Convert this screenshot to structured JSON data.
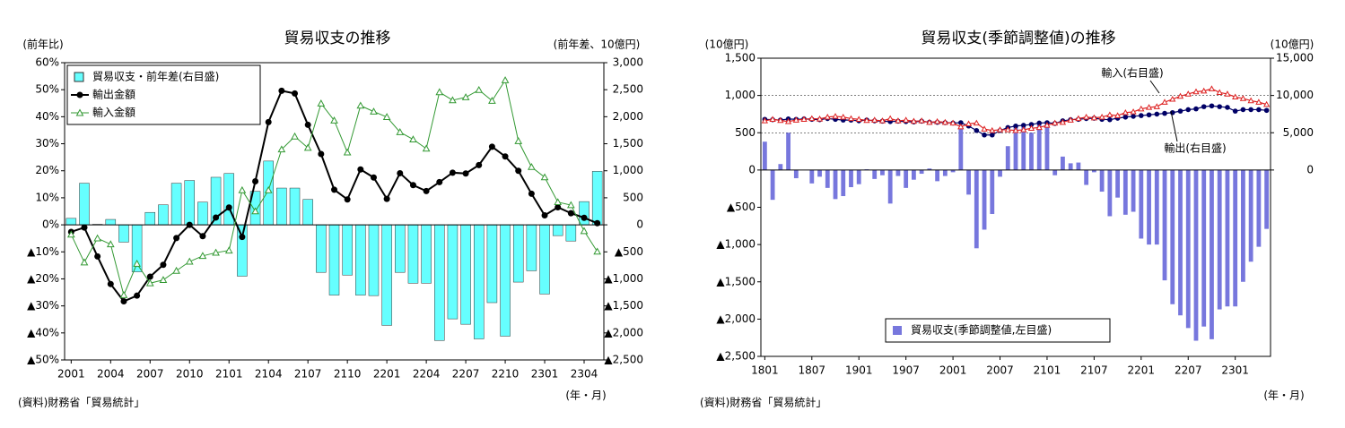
{
  "chart_data": [
    {
      "type": "combo",
      "title": "貿易収支の推移",
      "y_label": "(前年比)",
      "y2_label": "(前年差、10億円)",
      "x_label": "(年・月)",
      "source": "(資料)財務省「貿易統計」",
      "legend": "upper left",
      "categories": [
        "2001",
        null,
        null,
        "2004",
        null,
        null,
        "2007",
        null,
        null,
        "2010",
        null,
        null,
        "2101",
        null,
        null,
        "2104",
        null,
        null,
        "2107",
        null,
        null,
        "2110",
        null,
        null,
        "2201",
        null,
        null,
        "2204",
        null,
        null,
        "2207",
        null,
        null,
        "2210",
        null,
        null,
        "2301",
        null,
        null,
        "2304",
        null
      ],
      "ylim": [
        -50,
        60
      ],
      "yticks": [
        {
          "value": -50,
          "label": "▲50%"
        },
        {
          "value": -40,
          "label": "▲40%"
        },
        {
          "value": -30,
          "label": "▲30%"
        },
        {
          "value": -20,
          "label": "▲20%"
        },
        {
          "value": -10,
          "label": "▲10%"
        },
        {
          "value": 0,
          "label": "0%"
        },
        {
          "value": 10,
          "label": "10%"
        },
        {
          "value": 20,
          "label": "20%"
        },
        {
          "value": 30,
          "label": "30%"
        },
        {
          "value": 40,
          "label": "40%"
        },
        {
          "value": 50,
          "label": "50%"
        },
        {
          "value": 60,
          "label": "60%"
        }
      ],
      "y2lim": [
        -2500,
        3000
      ],
      "y2ticks": [
        {
          "value": -2500,
          "label": "▲2,500"
        },
        {
          "value": -2000,
          "label": "▲2,000"
        },
        {
          "value": -1500,
          "label": "▲1,500"
        },
        {
          "value": -1000,
          "label": "▲1,000"
        },
        {
          "value": -500,
          "label": "▲500"
        },
        0,
        500,
        {
          "value": 1000,
          "label": "1,000"
        },
        {
          "value": 1500,
          "label": "1,500"
        },
        {
          "value": 2000,
          "label": "2,000"
        },
        {
          "value": 2500,
          "label": "2,500"
        },
        {
          "value": 3000,
          "label": "3,000"
        }
      ],
      "grid": false,
      "series": [
        {
          "name": "貿易収支・前年差(右目盛)",
          "type": "bar",
          "axis": "y2",
          "color": "#66ffff",
          "values": [
            120,
            770,
            10,
            100,
            -320,
            -870,
            230,
            370,
            770,
            820,
            420,
            880,
            950,
            -950,
            620,
            1180,
            680,
            680,
            470,
            -880,
            -1300,
            -930,
            -1300,
            -1310,
            -1860,
            -880,
            -1080,
            -1080,
            -2140,
            -1740,
            -1840,
            -2110,
            -1440,
            -2060,
            -1060,
            -850,
            -1280,
            -200,
            -300,
            430,
            990
          ]
        },
        {
          "name": "輸出金額",
          "type": "line",
          "marker": "circle",
          "color": "#000000",
          "values": [
            -2.6,
            -1,
            -11.7,
            -21.9,
            -28.3,
            -26.2,
            -19.2,
            -14.8,
            -4.9,
            0,
            -4.2,
            2.7,
            6.4,
            -4.5,
            16.1,
            38,
            49.6,
            48.6,
            37,
            26.2,
            13,
            9.4,
            20.5,
            17.5,
            9.6,
            19.1,
            14.7,
            12.5,
            15.8,
            19.3,
            19,
            22.1,
            28.9,
            25.3,
            20,
            11.5,
            3.5,
            6.5,
            4.3,
            2.6,
            0.6
          ]
        },
        {
          "name": "輸入金額",
          "type": "line",
          "marker": "triangle",
          "color": "#339933",
          "values": [
            -3.6,
            -13.9,
            -5,
            -7.2,
            -26,
            -14.4,
            -21.6,
            -20.4,
            -17,
            -13.6,
            -11.5,
            -10.3,
            -9.5,
            12.8,
            5,
            12.8,
            27.9,
            32.7,
            28.5,
            44.9,
            38.6,
            26.8,
            44.1,
            41.9,
            39.9,
            34.3,
            31.6,
            28.2,
            49.1,
            46.1,
            47.2,
            49.9,
            45.9,
            53.5,
            31,
            21.4,
            17.6,
            8.4,
            7.3,
            -2.3,
            -9.9
          ]
        }
      ]
    },
    {
      "type": "combo",
      "title": "貿易収支(季節調整値)の推移",
      "y_label": "(10億円)",
      "y2_label": "(10億円)",
      "x_label": "(年・月)",
      "source": "(資料)財務省「貿易統計」",
      "legend": "lower center",
      "annotations": [
        "輸入(右目盛)",
        "輸出(右目盛)"
      ],
      "categories": [
        "1801",
        null,
        null,
        null,
        null,
        null,
        "1807",
        null,
        null,
        null,
        null,
        null,
        "1901",
        null,
        null,
        null,
        null,
        null,
        "1907",
        null,
        null,
        null,
        null,
        null,
        "2001",
        null,
        null,
        null,
        null,
        null,
        "2007",
        null,
        null,
        null,
        null,
        null,
        "2101",
        null,
        null,
        null,
        null,
        null,
        "2107",
        null,
        null,
        null,
        null,
        null,
        "2201",
        null,
        null,
        null,
        null,
        null,
        "2207",
        null,
        null,
        null,
        null,
        null,
        "2301",
        null,
        null,
        null,
        null
      ],
      "ylim": [
        -2500,
        1500
      ],
      "yticks": [
        {
          "value": -2500,
          "label": "▲2,500"
        },
        {
          "value": -2000,
          "label": "▲2,000"
        },
        {
          "value": -1500,
          "label": "▲1,500"
        },
        {
          "value": -1000,
          "label": "▲1,000"
        },
        {
          "value": -500,
          "label": "▲500"
        },
        0,
        500,
        {
          "value": 1000,
          "label": "1,000"
        },
        {
          "value": 1500,
          "label": "1,500"
        }
      ],
      "y2lim": [
        -25000,
        15000
      ],
      "y2ticks": [
        0,
        {
          "value": 5000,
          "label": "5,000"
        },
        {
          "value": 10000,
          "label": "10,000"
        },
        {
          "value": 15000,
          "label": "15,000"
        }
      ],
      "grid": true,
      "series": [
        {
          "name": "貿易収支(季節調整値,左目盛)",
          "type": "bar",
          "axis": "y",
          "color": "#7777dd",
          "values": [
            380,
            -400,
            80,
            500,
            -110,
            0,
            -180,
            -90,
            -240,
            -390,
            -350,
            -230,
            -190,
            10,
            -120,
            -70,
            -450,
            -80,
            -240,
            -130,
            -50,
            20,
            -150,
            -80,
            -30,
            580,
            -330,
            -1050,
            -800,
            -590,
            -90,
            320,
            580,
            580,
            500,
            620,
            650,
            -70,
            180,
            90,
            100,
            -200,
            -30,
            -290,
            -620,
            -370,
            -600,
            -560,
            -920,
            -1000,
            -1000,
            -1480,
            -1800,
            -1950,
            -2120,
            -2290,
            -2100,
            -2270,
            -1870,
            -1830,
            -1830,
            -1500,
            -1230,
            -1030,
            -790
          ]
        },
        {
          "type": "line",
          "axis": "y2",
          "marker": "circle",
          "color": "#000066",
          "values": [
            6800,
            6750,
            6700,
            6850,
            6800,
            6850,
            6800,
            6750,
            6900,
            6800,
            6700,
            6700,
            6600,
            6700,
            6600,
            6550,
            6500,
            6550,
            6500,
            6450,
            6550,
            6400,
            6400,
            6350,
            6300,
            6350,
            5900,
            5300,
            4700,
            4700,
            5300,
            5700,
            5900,
            6000,
            6100,
            6300,
            6350,
            6250,
            6600,
            6750,
            6800,
            6900,
            6950,
            6800,
            6750,
            6950,
            7100,
            7200,
            7300,
            7400,
            7500,
            7600,
            7700,
            7900,
            8100,
            8200,
            8500,
            8600,
            8500,
            8400,
            7900,
            8100,
            8100,
            8100,
            8000
          ]
        },
        {
          "type": "line",
          "axis": "y2",
          "marker": "triangle",
          "color": "#dd2222",
          "values": [
            6600,
            6800,
            6650,
            6500,
            6700,
            6800,
            6900,
            6850,
            7100,
            7200,
            7100,
            6900,
            6800,
            6650,
            6700,
            6600,
            6900,
            6600,
            6700,
            6550,
            6600,
            6400,
            6500,
            6400,
            6300,
            5800,
            6200,
            6300,
            5500,
            5300,
            5400,
            5400,
            5300,
            5400,
            5600,
            5700,
            6000,
            6300,
            6400,
            6700,
            6900,
            7100,
            7000,
            7100,
            7400,
            7300,
            7700,
            7800,
            8200,
            8400,
            8500,
            9100,
            9500,
            9900,
            10200,
            10500,
            10600,
            10900,
            10400,
            10200,
            9800,
            9600,
            9300,
            9100,
            8800
          ]
        }
      ]
    }
  ]
}
